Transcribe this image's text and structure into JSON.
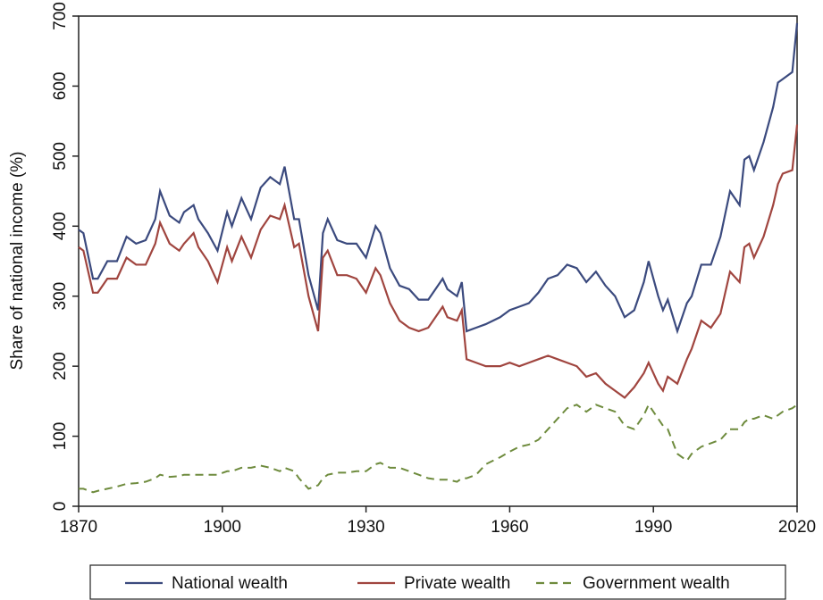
{
  "chart_data": {
    "type": "line",
    "y_label": "Share of national income (%)",
    "x": [
      1870,
      1871,
      1873,
      1874,
      1876,
      1878,
      1880,
      1882,
      1884,
      1886,
      1887,
      1889,
      1891,
      1892,
      1894,
      1895,
      1897,
      1899,
      1901,
      1902,
      1904,
      1906,
      1908,
      1910,
      1912,
      1913,
      1915,
      1916,
      1918,
      1920,
      1921,
      1922,
      1924,
      1926,
      1928,
      1930,
      1932,
      1933,
      1935,
      1937,
      1939,
      1941,
      1943,
      1945,
      1946,
      1947,
      1949,
      1950,
      1951,
      1953,
      1955,
      1958,
      1960,
      1962,
      1964,
      1966,
      1968,
      1970,
      1972,
      1974,
      1976,
      1978,
      1980,
      1982,
      1984,
      1986,
      1988,
      1989,
      1991,
      1992,
      1993,
      1995,
      1997,
      1998,
      2000,
      2002,
      2004,
      2006,
      2008,
      2009,
      2010,
      2011,
      2013,
      2015,
      2016,
      2017,
      2019,
      2020
    ],
    "series": [
      {
        "name": "National wealth",
        "color": "#3b4a7e",
        "linestyle": "solid",
        "values": [
          395,
          390,
          325,
          325,
          350,
          350,
          385,
          375,
          380,
          410,
          450,
          415,
          405,
          420,
          430,
          410,
          390,
          365,
          420,
          400,
          440,
          410,
          455,
          470,
          460,
          485,
          410,
          410,
          330,
          280,
          390,
          410,
          380,
          375,
          375,
          355,
          400,
          390,
          340,
          315,
          310,
          295,
          295,
          315,
          325,
          310,
          300,
          320,
          250,
          255,
          260,
          270,
          280,
          285,
          290,
          305,
          325,
          330,
          345,
          340,
          320,
          335,
          315,
          300,
          270,
          280,
          320,
          350,
          300,
          280,
          295,
          250,
          290,
          300,
          345,
          345,
          385,
          450,
          430,
          495,
          500,
          480,
          520,
          570,
          605,
          610,
          620,
          690
        ]
      },
      {
        "name": "Private wealth",
        "color": "#a0453f",
        "linestyle": "solid",
        "values": [
          370,
          365,
          305,
          305,
          325,
          325,
          355,
          345,
          345,
          375,
          405,
          375,
          365,
          375,
          390,
          370,
          350,
          320,
          370,
          350,
          385,
          355,
          395,
          415,
          410,
          430,
          370,
          375,
          300,
          250,
          355,
          365,
          330,
          330,
          325,
          305,
          340,
          330,
          290,
          265,
          255,
          250,
          255,
          275,
          285,
          270,
          265,
          280,
          210,
          205,
          200,
          200,
          205,
          200,
          205,
          210,
          215,
          210,
          205,
          200,
          185,
          190,
          175,
          165,
          155,
          170,
          190,
          205,
          175,
          165,
          185,
          175,
          210,
          225,
          265,
          255,
          275,
          335,
          320,
          370,
          375,
          355,
          385,
          430,
          460,
          475,
          480,
          545
        ]
      },
      {
        "name": "Government wealth",
        "color": "#6e8b3d",
        "linestyle": "dashed",
        "values": [
          25,
          25,
          20,
          22,
          25,
          28,
          32,
          33,
          35,
          40,
          45,
          42,
          43,
          45,
          45,
          45,
          45,
          45,
          50,
          50,
          55,
          55,
          58,
          55,
          50,
          55,
          50,
          40,
          25,
          30,
          40,
          45,
          48,
          48,
          50,
          50,
          60,
          62,
          55,
          55,
          50,
          45,
          40,
          38,
          38,
          38,
          35,
          40,
          40,
          45,
          60,
          70,
          78,
          85,
          88,
          95,
          110,
          125,
          140,
          145,
          135,
          145,
          140,
          135,
          115,
          110,
          130,
          145,
          125,
          115,
          110,
          75,
          65,
          75,
          85,
          90,
          95,
          110,
          110,
          120,
          125,
          125,
          130,
          125,
          130,
          135,
          140,
          145
        ]
      }
    ],
    "xlim": [
      1870,
      2020
    ],
    "xticks": [
      1870,
      1900,
      1930,
      1960,
      1990,
      2020
    ],
    "ylim": [
      0,
      700
    ],
    "yticks": [
      0,
      100,
      200,
      300,
      400,
      500,
      600,
      700
    ],
    "legend": "bottom"
  }
}
